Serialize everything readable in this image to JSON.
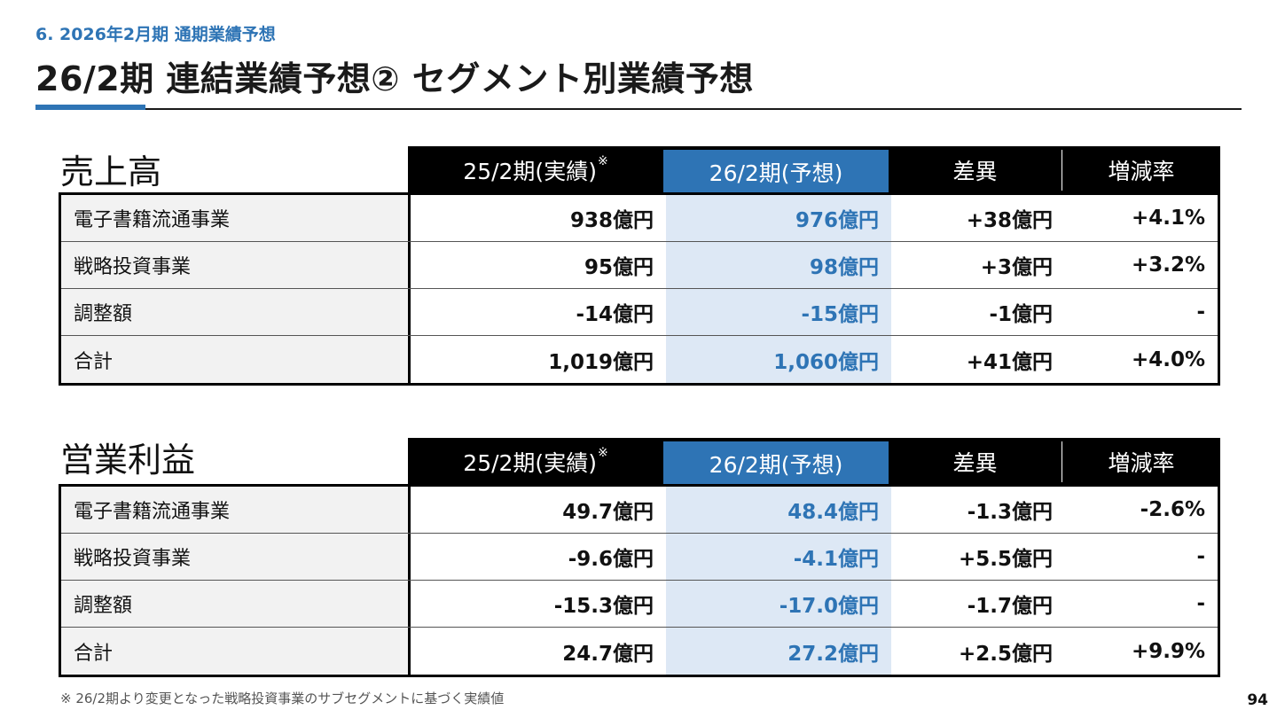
{
  "header": {
    "section_label": "6. 2026年2月期 通期業績予想",
    "title": "26/2期 連結業績予想② セグメント別業績予想",
    "accent_color": "#2e74b5"
  },
  "columns": {
    "actual": "25/2期(実績)",
    "actual_mark": "※",
    "forecast": "26/2期(予想)",
    "diff": "差異",
    "rate": "増減率"
  },
  "sales": {
    "title": "売上高",
    "rows": [
      {
        "name": "電子書籍流通事業",
        "actual": "938億円",
        "forecast": "976億円",
        "diff": "+38億円",
        "rate": "+4.1%"
      },
      {
        "name": "戦略投資事業",
        "actual": "95億円",
        "forecast": "98億円",
        "diff": "+3億円",
        "rate": "+3.2%"
      },
      {
        "name": "調整額",
        "actual": "-14億円",
        "forecast": "-15億円",
        "diff": "-1億円",
        "rate": "-"
      },
      {
        "name": "合計",
        "actual": "1,019億円",
        "forecast": "1,060億円",
        "diff": "+41億円",
        "rate": "+4.0%"
      }
    ]
  },
  "profit": {
    "title": "営業利益",
    "rows": [
      {
        "name": "電子書籍流通事業",
        "actual": "49.7億円",
        "forecast": "48.4億円",
        "diff": "-1.3億円",
        "rate": "-2.6%"
      },
      {
        "name": "戦略投資事業",
        "actual": "-9.6億円",
        "forecast": "-4.1億円",
        "diff": "+5.5億円",
        "rate": "-"
      },
      {
        "name": "調整額",
        "actual": "-15.3億円",
        "forecast": "-17.0億円",
        "diff": "-1.7億円",
        "rate": "-"
      },
      {
        "name": "合計",
        "actual": "24.7億円",
        "forecast": "27.2億円",
        "diff": "+2.5億円",
        "rate": "+9.9%"
      }
    ]
  },
  "footnote": "※ 26/2期より変更となった戦略投資事業のサブセグメントに基づく実績値",
  "page_number": "94"
}
